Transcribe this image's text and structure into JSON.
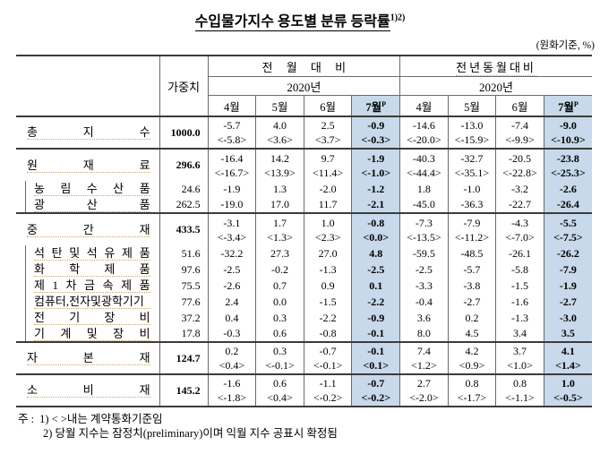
{
  "title": {
    "text": "수입물가지수 용도별 분류 등락률",
    "superscript": "1)2)"
  },
  "unit_note": "(원화기준, %)",
  "header": {
    "weight_label": "가중치",
    "groups": [
      {
        "label": "전 월 대 비",
        "year": "2020년"
      },
      {
        "label": "전년동월대비",
        "year": "2020년"
      }
    ],
    "months": [
      "4월",
      "5월",
      "6월"
    ],
    "preliminary_month": "7월",
    "preliminary_mark": "P"
  },
  "rows": [
    {
      "label": "총 지 수",
      "weight": "1000.0",
      "level": "main",
      "mom": [
        "-5.7",
        "4.0",
        "2.5",
        "-0.9"
      ],
      "mom_contract": [
        "<-5.8>",
        "<3.6>",
        "<3.7>",
        "<-0.3>"
      ],
      "yoy": [
        "-14.6",
        "-13.0",
        "-7.4",
        "-9.0"
      ],
      "yoy_contract": [
        "<-20.0>",
        "<-15.9>",
        "<-9.9>",
        "<-10.9>"
      ]
    },
    {
      "label": "원 재 료",
      "weight": "296.6",
      "level": "main",
      "section": true,
      "mom": [
        "-16.4",
        "14.2",
        "9.7",
        "-1.9"
      ],
      "mom_contract": [
        "<-16.7>",
        "<13.9>",
        "<11.4>",
        "<-1.0>"
      ],
      "yoy": [
        "-40.3",
        "-32.7",
        "-20.5",
        "-23.8"
      ],
      "yoy_contract": [
        "<-44.4>",
        "<-35.1>",
        "<-22.8>",
        "<-25.3>"
      ]
    },
    {
      "label": "농 림 수 산 품",
      "weight": "24.6",
      "level": "sub",
      "mom": [
        "-1.9",
        "1.3",
        "-2.0",
        "-1.2"
      ],
      "yoy": [
        "1.8",
        "-1.0",
        "-3.2",
        "-2.6"
      ]
    },
    {
      "label": "광 산 품",
      "weight": "262.5",
      "level": "sub",
      "mom": [
        "-19.0",
        "17.0",
        "11.7",
        "-2.1"
      ],
      "yoy": [
        "-45.0",
        "-36.3",
        "-22.7",
        "-26.4"
      ]
    },
    {
      "label": "중 간 재",
      "weight": "433.5",
      "level": "main",
      "section": true,
      "mom": [
        "-3.1",
        "1.7",
        "1.0",
        "-0.8"
      ],
      "mom_contract": [
        "<-3.4>",
        "<1.3>",
        "<2.3>",
        "<0.0>"
      ],
      "yoy": [
        "-7.3",
        "-7.9",
        "-4.3",
        "-5.5"
      ],
      "yoy_contract": [
        "<-13.5>",
        "<-11.2>",
        "<-7.0>",
        "<-7.5>"
      ]
    },
    {
      "label": "석 탄 및 석 유 제 품",
      "weight": "51.6",
      "level": "sub",
      "mom": [
        "-32.2",
        "27.3",
        "27.0",
        "4.8"
      ],
      "yoy": [
        "-59.5",
        "-48.5",
        "-26.1",
        "-26.2"
      ]
    },
    {
      "label": "화 학 제 품",
      "weight": "97.6",
      "level": "sub",
      "mom": [
        "-2.5",
        "-0.2",
        "-1.3",
        "-2.5"
      ],
      "yoy": [
        "-2.5",
        "-5.7",
        "-5.8",
        "-7.9"
      ]
    },
    {
      "label": "제 1 차 금 속 제 품",
      "weight": "75.5",
      "level": "sub",
      "mom": [
        "-2.6",
        "0.7",
        "0.9",
        "0.1"
      ],
      "yoy": [
        "-3.3",
        "-3.8",
        "-1.5",
        "-1.9"
      ]
    },
    {
      "label": "컴퓨터,전자및광학기기",
      "weight": "77.6",
      "level": "sub",
      "mom": [
        "2.4",
        "0.0",
        "-1.5",
        "-2.2"
      ],
      "yoy": [
        "-0.4",
        "-2.7",
        "-1.6",
        "-2.7"
      ]
    },
    {
      "label": "전 기 장 비",
      "weight": "37.2",
      "level": "sub",
      "mom": [
        "0.4",
        "0.3",
        "-2.2",
        "-0.9"
      ],
      "yoy": [
        "3.6",
        "0.2",
        "-1.3",
        "-3.0"
      ]
    },
    {
      "label": "기 계 및 장 비",
      "weight": "17.8",
      "level": "sub",
      "mom": [
        "-0.3",
        "0.6",
        "-0.8",
        "-0.1"
      ],
      "yoy": [
        "8.0",
        "4.5",
        "3.4",
        "3.5"
      ]
    },
    {
      "label": "자 본 재",
      "weight": "124.7",
      "level": "main",
      "section": true,
      "mom": [
        "0.2",
        "0.3",
        "-0.7",
        "-0.1"
      ],
      "mom_contract": [
        "<0.4>",
        "<-0.1>",
        "<-0.1>",
        "<0.1>"
      ],
      "yoy": [
        "7.4",
        "4.2",
        "3.7",
        "4.1"
      ],
      "yoy_contract": [
        "<1.2>",
        "<0.9>",
        "<1.0>",
        "<1.4>"
      ]
    },
    {
      "label": "소 비 재",
      "weight": "145.2",
      "level": "main",
      "section": true,
      "mom": [
        "-1.6",
        "0.6",
        "-1.1",
        "-0.7"
      ],
      "mom_contract": [
        "<-1.8>",
        "<0.4>",
        "<-0.2>",
        "<-0.2>"
      ],
      "yoy": [
        "2.7",
        "0.8",
        "0.8",
        "1.0"
      ],
      "yoy_contract": [
        "<-2.0>",
        "<-1.7>",
        "<-1.1>",
        "<-0.5>"
      ]
    }
  ],
  "footnotes": {
    "prefix": "주 :",
    "items": [
      "1) < >내는 계약통화기준임",
      "2) 당월 지수는 잠정치(preliminary)이며 익월 지수 공표시 확정됨"
    ]
  },
  "colors": {
    "highlight": "#c7d9ea",
    "rule_dark": "#3b3b3b",
    "rule_light": "#6b6b6b",
    "squiggle": "#caa470"
  }
}
